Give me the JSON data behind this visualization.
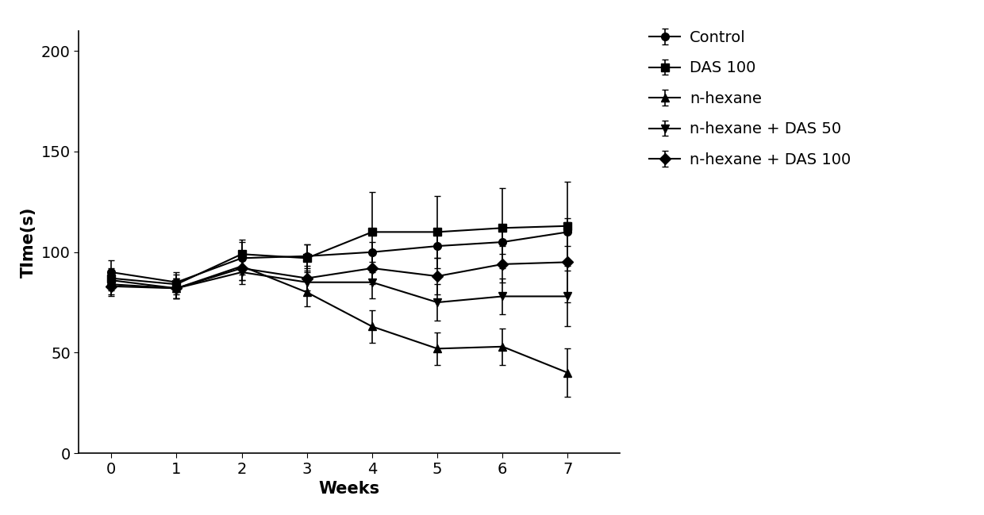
{
  "weeks": [
    0,
    1,
    2,
    3,
    4,
    5,
    6,
    7
  ],
  "series": [
    {
      "label": "Control",
      "marker": "o",
      "values": [
        90,
        85,
        97,
        98,
        100,
        103,
        105,
        110
      ],
      "errors": [
        6,
        5,
        8,
        6,
        5,
        6,
        6,
        7
      ]
    },
    {
      "label": "DAS 100",
      "marker": "s",
      "values": [
        87,
        84,
        99,
        97,
        110,
        110,
        112,
        113
      ],
      "errors": [
        5,
        5,
        7,
        7,
        20,
        18,
        20,
        22
      ]
    },
    {
      "label": "n-hexane",
      "marker": "^",
      "values": [
        86,
        82,
        93,
        80,
        63,
        52,
        53,
        40
      ],
      "errors": [
        5,
        5,
        7,
        7,
        8,
        8,
        9,
        12
      ]
    },
    {
      "label": "n-hexane + DAS 50",
      "marker": "v",
      "values": [
        84,
        82,
        90,
        85,
        85,
        75,
        78,
        78
      ],
      "errors": [
        5,
        5,
        6,
        6,
        8,
        9,
        9,
        15
      ]
    },
    {
      "label": "n-hexane + DAS 100",
      "marker": "D",
      "values": [
        83,
        82,
        92,
        87,
        92,
        88,
        94,
        95
      ],
      "errors": [
        5,
        5,
        6,
        6,
        8,
        9,
        9,
        20
      ]
    }
  ],
  "xlabel": "Weeks",
  "ylabel": "TIme(s)",
  "ylim": [
    0,
    210
  ],
  "xlim": [
    -0.5,
    7.8
  ],
  "yticks": [
    0,
    50,
    100,
    150,
    200
  ],
  "xticks": [
    0,
    1,
    2,
    3,
    4,
    5,
    6,
    7
  ],
  "line_color": "#000000",
  "background_color": "#ffffff",
  "marker_size": 7,
  "line_width": 1.5,
  "capsize": 3,
  "label_fontsize": 15,
  "tick_fontsize": 14,
  "legend_fontsize": 14
}
